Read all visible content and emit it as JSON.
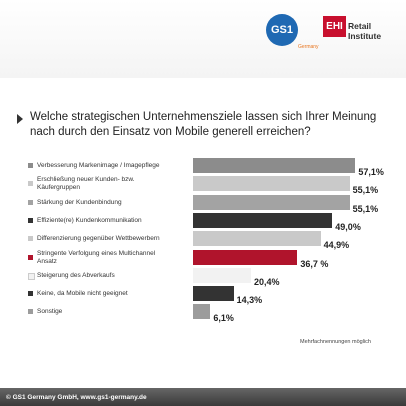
{
  "header": {
    "logo1": "GS1",
    "logo1_sub": "Germany",
    "logo2": "EHI",
    "logo2_text": "Retail Institute"
  },
  "chart_data": {
    "type": "bar",
    "orientation": "horizontal",
    "title": "Welche strategischen Unternehmensziele lassen sich Ihrer Meinung nach durch den Einsatz von Mobile generell erreichen?",
    "categories": [
      "Verbesserung Markenimage / Imagepflege",
      "Erschließung neuer Kunden- bzw. Käufergruppen",
      "Stärkung der Kundenbindung",
      "Effiziente(re) Kundenkommunikation",
      "Differenzierung gegenüber Wettbewerbern",
      "Stringente Verfolgung eines Multichannel Ansatz",
      "Steigerung des Abverkaufs",
      "Keine, da Mobile nicht geeignet",
      "Sonstige"
    ],
    "values": [
      57.1,
      55.1,
      55.1,
      49.0,
      44.9,
      36.7,
      20.4,
      14.3,
      6.1
    ],
    "value_labels": [
      "57,1%",
      "55,1%",
      "55,1%",
      "49,0%",
      "44,9%",
      "36,7 %",
      "20,4%",
      "14,3%",
      "6,1%"
    ],
    "colors": [
      "#8c8c8c",
      "#c9c9c9",
      "#a3a3a3",
      "#333333",
      "#c9c9c9",
      "#b0142c",
      "#f2f2f2",
      "#333333",
      "#9c9c9c"
    ],
    "note": "Mehrfachnennungen möglich"
  },
  "footer": {
    "text": "© GS1 Germany GmbH, www.gs1-germany.de"
  }
}
